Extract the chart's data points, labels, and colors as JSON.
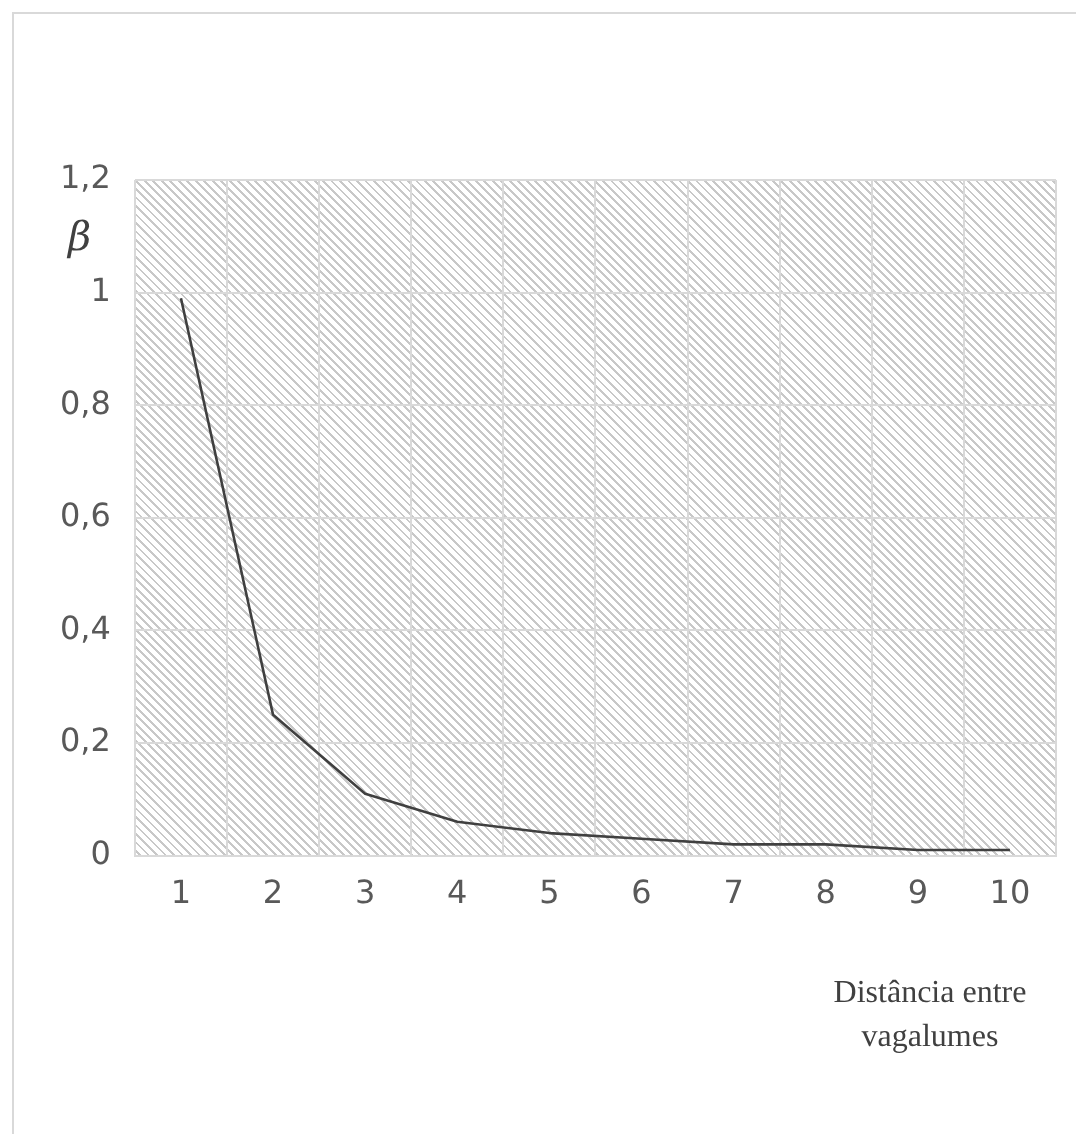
{
  "chart_data": {
    "type": "line",
    "ylabel": "β",
    "xlabel": "Distância entre vagalumes",
    "categories": [
      "1",
      "2",
      "3",
      "4",
      "5",
      "6",
      "7",
      "8",
      "9",
      "10"
    ],
    "series": [
      {
        "color": "#404040",
        "values": [
          0.99,
          0.25,
          0.11,
          0.06,
          0.04,
          0.03,
          0.02,
          0.02,
          0.01,
          0.01
        ]
      }
    ],
    "ylim": [
      0,
      1.2
    ],
    "yticks": [
      {
        "value": 0,
        "label": "0"
      },
      {
        "value": 0.2,
        "label": "0,2"
      },
      {
        "value": 0.4,
        "label": "0,4"
      },
      {
        "value": 0.6,
        "label": "0,6"
      },
      {
        "value": 0.8,
        "label": "0,8"
      },
      {
        "value": 1,
        "label": "1"
      },
      {
        "value": 1.2,
        "label": "1,2"
      }
    ],
    "grid": true,
    "legend": false,
    "marker": "none",
    "line_style": "solid"
  }
}
